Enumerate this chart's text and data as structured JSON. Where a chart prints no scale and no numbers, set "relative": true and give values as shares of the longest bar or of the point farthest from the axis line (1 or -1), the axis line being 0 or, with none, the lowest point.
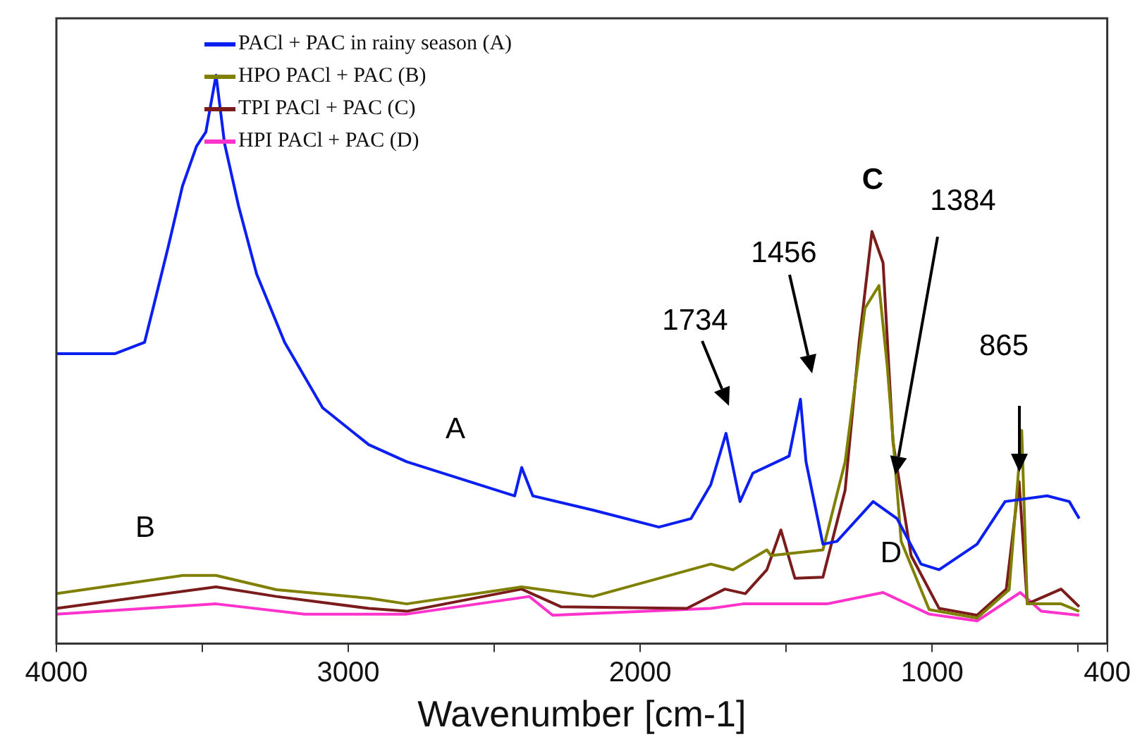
{
  "chart_data": {
    "type": "line",
    "relative": true,
    "xlabel": "Wavenumber [cm-1]",
    "xlim": [
      4000,
      400
    ],
    "xticks": [
      4000,
      {
        "value": 3500,
        "label": null
      },
      3000,
      {
        "value": 2500,
        "label": null
      },
      2000,
      {
        "value": 1500,
        "label": null
      },
      1000,
      {
        "value": 500,
        "label": null
      },
      400
    ],
    "grid": false,
    "legend": "top left",
    "series": [
      {
        "name": "PACl + PAC in rainy season (A)",
        "color": "#0a1ff0",
        "x": [
          4000,
          3800,
          3698,
          3664,
          3616,
          3568,
          3520,
          3488,
          3453,
          3424,
          3376,
          3314,
          3218,
          3088,
          2930,
          2800,
          2430,
          2406,
          2368,
          2162,
          1936,
          1826,
          1758,
          1706,
          1658,
          1614,
          1490,
          1451,
          1432,
          1374,
          1326,
          1202,
          1120,
          1038,
          976,
          846,
          750,
          606,
          530,
          496
        ],
        "values": [
          0.51,
          0.51,
          0.53,
          0.6,
          0.7,
          0.805,
          0.875,
          0.9,
          1.0,
          0.88,
          0.77,
          0.65,
          0.53,
          0.415,
          0.35,
          0.32,
          0.26,
          0.31,
          0.26,
          0.235,
          0.205,
          0.22,
          0.28,
          0.37,
          0.25,
          0.3,
          0.33,
          0.43,
          0.32,
          0.175,
          0.18,
          0.25,
          0.22,
          0.14,
          0.13,
          0.175,
          0.25,
          0.26,
          0.25,
          0.22
        ]
      },
      {
        "name": "HPO PACl + PAC (B)",
        "color": "#808000",
        "x": [
          4000,
          3568,
          3453,
          3246,
          2930,
          2800,
          2406,
          2162,
          1936,
          1758,
          1682,
          1566,
          1552,
          1374,
          1298,
          1230,
          1182,
          1154,
          1106,
          1010,
          846,
          736,
          693,
          674,
          558,
          496
        ],
        "values": [
          0.088,
          0.12,
          0.12,
          0.095,
          0.08,
          0.07,
          0.1,
          0.083,
          0.115,
          0.14,
          0.13,
          0.165,
          0.155,
          0.165,
          0.32,
          0.59,
          0.63,
          0.49,
          0.18,
          0.06,
          0.045,
          0.095,
          0.375,
          0.07,
          0.07,
          0.057
        ]
      },
      {
        "name": "TPI PACl + PAC (C)",
        "color": "#7b1c1c",
        "x": [
          4000,
          3453,
          3246,
          2930,
          2800,
          2406,
          2272,
          1840,
          1710,
          1640,
          1566,
          1518,
          1470,
          1374,
          1298,
          1250,
          1206,
          1168,
          1134,
          1072,
          976,
          846,
          746,
          702,
          674,
          558,
          496
        ],
        "values": [
          0.062,
          0.1,
          0.083,
          0.062,
          0.057,
          0.096,
          0.065,
          0.062,
          0.096,
          0.088,
          0.13,
          0.2,
          0.115,
          0.117,
          0.27,
          0.53,
          0.725,
          0.67,
          0.355,
          0.155,
          0.062,
          0.05,
          0.096,
          0.285,
          0.07,
          0.096,
          0.065
        ]
      },
      {
        "name": "HPI PACl + PAC (D)",
        "color": "#ff33cc",
        "x": [
          4000,
          3453,
          3150,
          2800,
          2380,
          2300,
          1758,
          1648,
          1360,
          1168,
          1010,
          846,
          698,
          626,
          496
        ],
        "values": [
          0.052,
          0.07,
          0.052,
          0.052,
          0.083,
          0.05,
          0.062,
          0.07,
          0.07,
          0.09,
          0.052,
          0.04,
          0.09,
          0.057,
          0.05
        ]
      }
    ],
    "annotations": [
      "1734",
      "1456",
      "C",
      "1384",
      "865",
      "A",
      "B",
      "D"
    ]
  }
}
